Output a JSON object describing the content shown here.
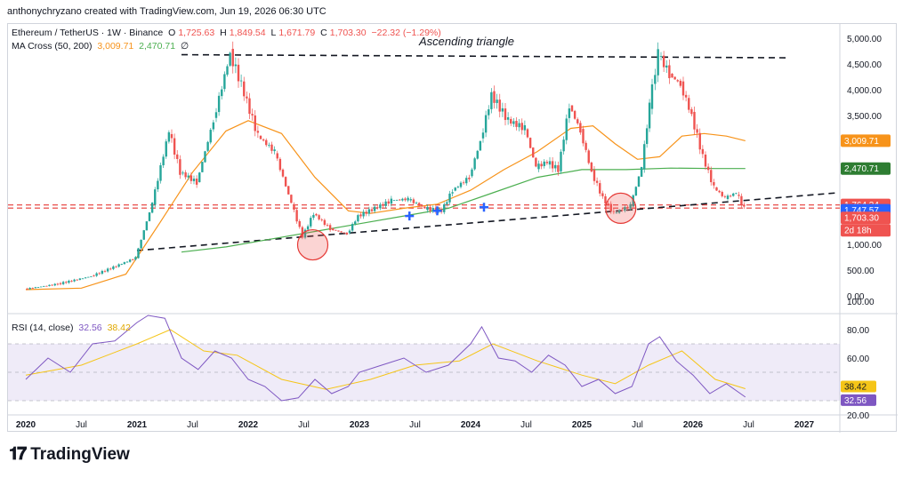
{
  "caption": "anthonychryzano created with TradingView.com, Jun 19, 2026 06:30 UTC",
  "brand": "TradingView",
  "legend": {
    "symbol": "Ethereum / TetherUS · 1W · Binance",
    "open_label": "O",
    "open": "1,725.63",
    "high_label": "H",
    "high": "1,849.54",
    "low_label": "L",
    "low": "1,671.79",
    "close_label": "C",
    "close": "1,703.30",
    "change": "−22.32 (−1.29%)",
    "ma_label": "MA Cross (50, 200)",
    "ma50": "3,009.71",
    "ma200": "2,470.71",
    "ma_extra": "∅",
    "rsi_label": "RSI (14, close)",
    "rsi_value": "32.56",
    "rsi_ma": "38.42"
  },
  "annotation": "Ascending triangle",
  "colors": {
    "up": "#26a69a",
    "down": "#ef5350",
    "ma50": "#f7931a",
    "ma200": "#4caf50",
    "rsi": "#7e57c2",
    "rsi_ma": "#f5c518",
    "trend": "#131722",
    "level": "#e53935"
  },
  "price_tags": [
    {
      "text": "3,009.71",
      "value": 3009.71,
      "color": "#f7931a"
    },
    {
      "text": "2,470.71",
      "value": 2470.71,
      "color": "#2e7d32"
    },
    {
      "text": "1,764.34",
      "value": 1764.34,
      "color": "#ef5350"
    },
    {
      "text": "1,747.57",
      "value": 1747.57,
      "color": "#2962ff"
    },
    {
      "text": "1,703.30",
      "value": 1703.3,
      "color": "#ef5350"
    },
    {
      "text": "2d 18h",
      "value": 1480,
      "color": "#ef5350"
    }
  ],
  "chart_data": {
    "type": "line",
    "x_ticks": [
      "2020",
      "Jul",
      "2021",
      "Jul",
      "2022",
      "Jul",
      "2023",
      "Jul",
      "2024",
      "Jul",
      "2025",
      "Jul",
      "2026",
      "Jul",
      "2027"
    ],
    "y_ticks": [
      "5,000.00",
      "4,500.00",
      "4,000.00",
      "3,500.00",
      "3,000.00",
      "1,000.00",
      "500.00",
      "0.00"
    ],
    "y_tick_values": [
      5000,
      4500,
      4000,
      3500,
      3000,
      1000,
      500,
      0
    ],
    "rsi_ticks": [
      "100.00",
      "80.00",
      "60.00",
      "20.00"
    ],
    "rsi_tick_values": [
      100,
      80,
      60,
      20
    ],
    "price": {
      "x": [
        2020.0,
        2020.3,
        2020.6,
        2020.85,
        2021.0,
        2021.15,
        2021.3,
        2021.4,
        2021.55,
        2021.7,
        2021.85,
        2021.95,
        2022.1,
        2022.25,
        2022.4,
        2022.5,
        2022.6,
        2022.75,
        2022.9,
        2023.0,
        2023.15,
        2023.3,
        2023.45,
        2023.6,
        2023.75,
        2023.85,
        2024.0,
        2024.1,
        2024.2,
        2024.35,
        2024.5,
        2024.6,
        2024.7,
        2024.8,
        2024.9,
        2025.0,
        2025.1,
        2025.2,
        2025.3,
        2025.45,
        2025.55,
        2025.62,
        2025.7,
        2025.8,
        2025.9,
        2026.0,
        2026.1,
        2026.2,
        2026.3,
        2026.4,
        2026.47
      ],
      "y": [
        130,
        230,
        380,
        600,
        740,
        1800,
        3200,
        2400,
        2200,
        3400,
        4700,
        4100,
        3100,
        2800,
        1800,
        1150,
        1600,
        1300,
        1200,
        1550,
        1700,
        1850,
        1880,
        1700,
        1650,
        2050,
        2300,
        3000,
        3900,
        3400,
        3250,
        2500,
        2600,
        2450,
        3700,
        3200,
        2400,
        1900,
        1600,
        1750,
        2500,
        3700,
        4700,
        4300,
        4100,
        3500,
        2700,
        2100,
        1900,
        2000,
        1703
      ]
    },
    "ma50": {
      "x": [
        2020.0,
        2020.5,
        2020.9,
        2021.2,
        2021.5,
        2021.8,
        2022.0,
        2022.3,
        2022.6,
        2022.9,
        2023.1,
        2023.4,
        2023.7,
        2024.0,
        2024.3,
        2024.6,
        2024.9,
        2025.1,
        2025.3,
        2025.5,
        2025.7,
        2025.9,
        2026.1,
        2026.3,
        2026.47
      ],
      "y": [
        120,
        150,
        420,
        1400,
        2400,
        3200,
        3400,
        3150,
        2300,
        1650,
        1600,
        1700,
        1780,
        2050,
        2450,
        2800,
        3250,
        3300,
        2950,
        2650,
        2700,
        3100,
        3150,
        3100,
        3009.71
      ]
    },
    "ma200": {
      "x": [
        2021.4,
        2021.8,
        2022.2,
        2022.6,
        2023.0,
        2023.4,
        2023.8,
        2024.2,
        2024.6,
        2025.0,
        2025.4,
        2025.8,
        2026.2,
        2026.47
      ],
      "y": [
        850,
        950,
        1100,
        1250,
        1400,
        1550,
        1700,
        2000,
        2300,
        2450,
        2450,
        2480,
        2470,
        2470.71
      ]
    },
    "rsi": {
      "x": [
        2020.0,
        2020.2,
        2020.4,
        2020.6,
        2020.8,
        2021.0,
        2021.1,
        2021.25,
        2021.4,
        2021.55,
        2021.7,
        2021.85,
        2022.0,
        2022.15,
        2022.3,
        2022.45,
        2022.6,
        2022.75,
        2022.9,
        2023.0,
        2023.2,
        2023.4,
        2023.6,
        2023.8,
        2024.0,
        2024.1,
        2024.25,
        2024.4,
        2024.55,
        2024.7,
        2024.85,
        2025.0,
        2025.15,
        2025.3,
        2025.45,
        2025.6,
        2025.7,
        2025.85,
        2026.0,
        2026.15,
        2026.3,
        2026.47
      ],
      "y": [
        45,
        60,
        50,
        70,
        72,
        85,
        90,
        88,
        60,
        52,
        65,
        60,
        45,
        40,
        30,
        32,
        45,
        35,
        40,
        50,
        55,
        60,
        50,
        55,
        70,
        82,
        60,
        58,
        50,
        62,
        55,
        40,
        45,
        35,
        40,
        70,
        75,
        58,
        48,
        35,
        42,
        32.56
      ]
    },
    "rsi_ma": {
      "x": [
        2020.0,
        2020.5,
        2021.0,
        2021.3,
        2021.6,
        2021.9,
        2022.3,
        2022.7,
        2023.1,
        2023.5,
        2023.9,
        2024.2,
        2024.6,
        2025.0,
        2025.3,
        2025.6,
        2025.9,
        2026.2,
        2026.47
      ],
      "y": [
        48,
        55,
        70,
        80,
        65,
        62,
        45,
        38,
        45,
        55,
        58,
        70,
        58,
        48,
        42,
        55,
        65,
        45,
        38.42
      ]
    },
    "trendlines": [
      {
        "x": [
          2021.0,
          2027.3
        ],
        "y": [
          880,
          2000
        ]
      },
      {
        "x": [
          2021.4,
          2026.85
        ],
        "y": [
          4680,
          4620
        ]
      }
    ],
    "levels": [
      1764.34,
      1703.3
    ],
    "circles": [
      {
        "x": 2022.58,
        "y": 990
      },
      {
        "x": 2025.35,
        "y": 1700
      }
    ],
    "crosses": [
      {
        "x": 2023.45,
        "y": 1550
      },
      {
        "x": 2023.7,
        "y": 1650
      },
      {
        "x": 2024.12,
        "y": 1720
      }
    ],
    "ylabel": "",
    "xlabel": ""
  }
}
